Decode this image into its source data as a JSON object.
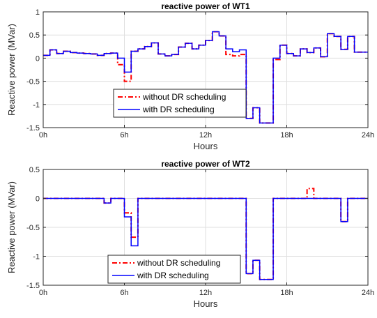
{
  "chart_data": [
    {
      "type": "line",
      "title": "reactive power of WT1",
      "xlabel": "Hours",
      "ylabel": "Reactive power (MVar)",
      "xlim": [
        0,
        24
      ],
      "ylim": [
        -1.5,
        1
      ],
      "xticks": [
        0,
        6,
        12,
        18,
        24
      ],
      "xtick_labels": [
        "0h",
        "6h",
        "12h",
        "18h",
        "24h"
      ],
      "yticks": [
        -1.5,
        -1,
        -0.5,
        0,
        0.5,
        1
      ],
      "ytick_labels": [
        "-1.5",
        "-1",
        "-0.5",
        "0",
        "0.5",
        "1"
      ],
      "grid": true,
      "legend_position": "lower-left",
      "step_hours": 0.5,
      "series": [
        {
          "name": "without DR scheduling",
          "color": "#ff0000",
          "style": "dash-dot",
          "values": [
            0.06,
            0.18,
            0.1,
            0.15,
            0.12,
            0.11,
            0.1,
            0.09,
            0.06,
            0.1,
            0.11,
            -0.14,
            -0.5,
            0.15,
            0.2,
            0.25,
            0.33,
            0.09,
            0.05,
            0.08,
            0.24,
            0.32,
            0.2,
            0.28,
            0.38,
            0.57,
            0.48,
            0.08,
            0.05,
            0.08,
            -1.3,
            -1.07,
            -1.4,
            -1.4,
            -0.03,
            0.28,
            0.1,
            0.05,
            0.2,
            0.12,
            0.22,
            0.03,
            0.53,
            0.47,
            0.19,
            0.47,
            0.13,
            0.13
          ]
        },
        {
          "name": "with DR scheduling",
          "color": "#0000ff",
          "style": "solid",
          "values": [
            0.06,
            0.18,
            0.1,
            0.15,
            0.12,
            0.11,
            0.1,
            0.09,
            0.06,
            0.1,
            0.11,
            0.0,
            -0.3,
            0.15,
            0.2,
            0.25,
            0.33,
            0.09,
            0.05,
            0.08,
            0.24,
            0.32,
            0.2,
            0.28,
            0.38,
            0.57,
            0.48,
            0.2,
            0.14,
            0.18,
            -1.3,
            -1.07,
            -1.4,
            -1.4,
            0.0,
            0.28,
            0.1,
            0.05,
            0.2,
            0.12,
            0.22,
            0.03,
            0.53,
            0.47,
            0.19,
            0.47,
            0.13,
            0.13
          ]
        }
      ]
    },
    {
      "type": "line",
      "title": "reactive power of WT2",
      "xlabel": "Hours",
      "ylabel": "Reactive power (MVar)",
      "xlim": [
        0,
        24
      ],
      "ylim": [
        -1.5,
        0.5
      ],
      "xticks": [
        0,
        6,
        12,
        18,
        24
      ],
      "xtick_labels": [
        "0h",
        "6h",
        "12h",
        "18h",
        "24h"
      ],
      "yticks": [
        -1.5,
        -1,
        -0.5,
        0,
        0.5
      ],
      "ytick_labels": [
        "-1.5",
        "-1",
        "-0.5",
        "0",
        "0.5"
      ],
      "grid": true,
      "legend_position": "lower-left",
      "step_hours": 0.5,
      "series": [
        {
          "name": "without DR scheduling",
          "color": "#ff0000",
          "style": "dash-dot",
          "values": [
            0,
            0,
            0,
            0,
            0,
            0,
            0,
            0,
            0,
            -0.08,
            0,
            0,
            -0.25,
            -0.67,
            0,
            0,
            0,
            0,
            0,
            0,
            0,
            0,
            0,
            0,
            0,
            0,
            0,
            0,
            0,
            0,
            -1.3,
            -1.07,
            -1.4,
            -1.4,
            0,
            0,
            0,
            0,
            0,
            0.17,
            0,
            0,
            0,
            0,
            -0.4,
            0,
            0,
            0
          ]
        },
        {
          "name": "with DR scheduling",
          "color": "#0000ff",
          "style": "solid",
          "values": [
            0,
            0,
            0,
            0,
            0,
            0,
            0,
            0,
            0,
            -0.08,
            0,
            0,
            -0.32,
            -0.82,
            0,
            0,
            0,
            0,
            0,
            0,
            0,
            0,
            0,
            0,
            0,
            0,
            0,
            0,
            0,
            0,
            -1.3,
            -1.07,
            -1.4,
            -1.4,
            0,
            0,
            0,
            0,
            0,
            0,
            0,
            0,
            0,
            0,
            -0.4,
            0,
            0,
            0
          ]
        }
      ]
    }
  ]
}
